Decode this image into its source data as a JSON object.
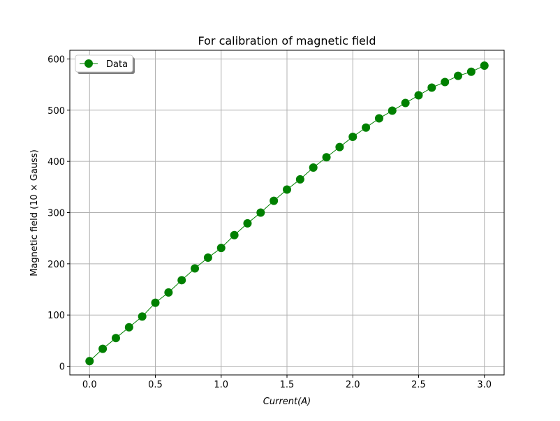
{
  "chart_data": {
    "type": "line",
    "title": "For calibration of magnetic field",
    "xlabel": "Current(A)",
    "ylabel": "Magnetic field (10 × Gauss)",
    "xlim": [
      -0.15,
      3.15
    ],
    "ylim": [
      -17,
      617
    ],
    "xticks": [
      0.0,
      0.5,
      1.0,
      1.5,
      2.0,
      2.5,
      3.0
    ],
    "xtick_labels": [
      "0.0",
      "0.5",
      "1.0",
      "1.5",
      "2.0",
      "2.5",
      "3.0"
    ],
    "yticks": [
      0,
      100,
      200,
      300,
      400,
      500,
      600
    ],
    "ytick_labels": [
      "0",
      "100",
      "200",
      "300",
      "400",
      "500",
      "600"
    ],
    "grid": true,
    "legend_position": "top-left",
    "series": [
      {
        "name": "Data",
        "color": "#008000",
        "marker": "circle",
        "x": [
          0.0,
          0.1,
          0.2,
          0.3,
          0.4,
          0.5,
          0.6,
          0.7,
          0.8,
          0.9,
          1.0,
          1.1,
          1.2,
          1.3,
          1.4,
          1.5,
          1.6,
          1.7,
          1.8,
          1.9,
          2.0,
          2.1,
          2.2,
          2.3,
          2.4,
          2.5,
          2.6,
          2.7,
          2.8,
          2.9,
          3.0
        ],
        "y": [
          10,
          34,
          55,
          76,
          97,
          124,
          144,
          168,
          191,
          212,
          231,
          256,
          279,
          300,
          323,
          345,
          365,
          388,
          408,
          428,
          448,
          466,
          484,
          499,
          514,
          529,
          544,
          555,
          567,
          575,
          587
        ]
      }
    ]
  }
}
